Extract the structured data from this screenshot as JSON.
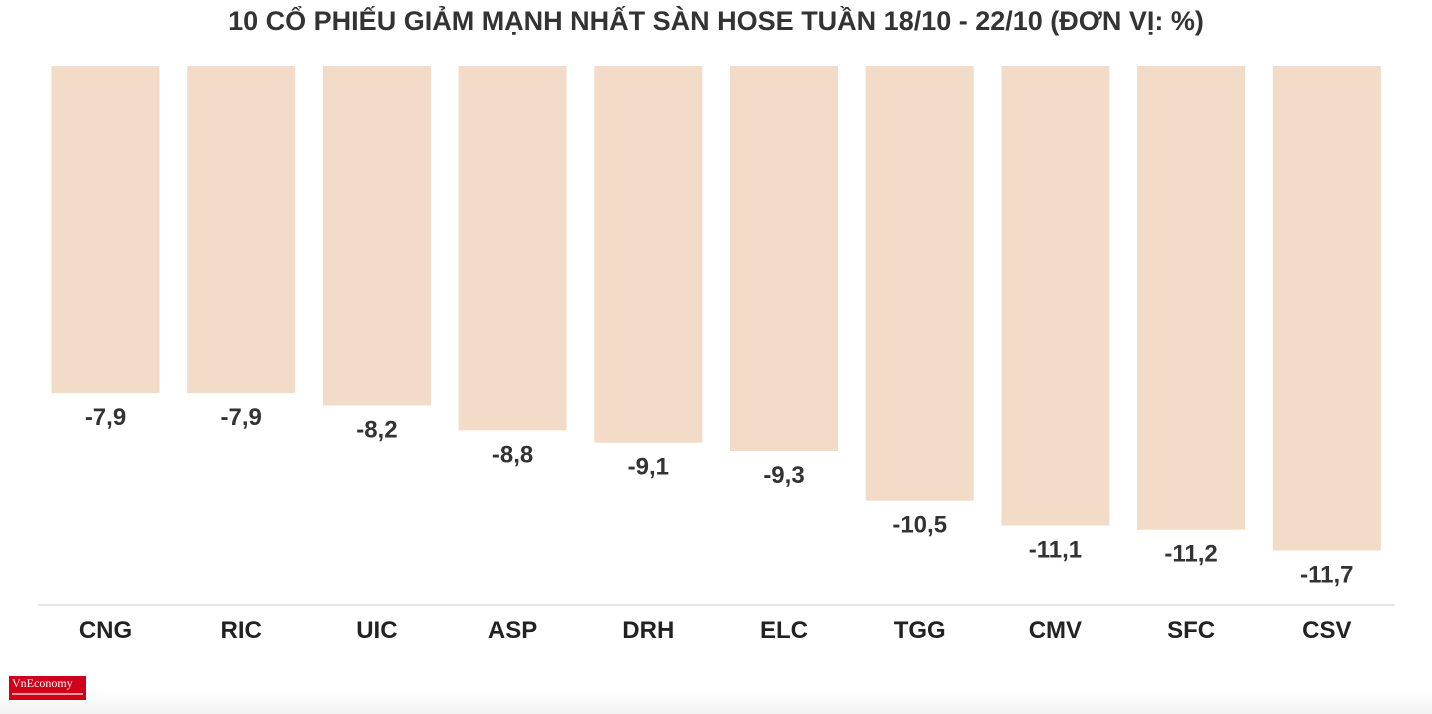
{
  "title": "10 CỔ PHIẾU GIẢM MẠNH NHẤT SÀN HOSE TUẦN 18/10 - 22/10 (ĐƠN VỊ: %)",
  "logo_text": "VnEconomy",
  "colors": {
    "bar": "#f2dbc7",
    "axis": "#dddddd",
    "text": "#333333",
    "logo_bg": "#d0021b"
  },
  "chart_data": {
    "type": "bar",
    "title": "10 CỔ PHIẾU GIẢM MẠNH NHẤT SÀN HOSE TUẦN 18/10 - 22/10 (ĐƠN VỊ: %)",
    "xlabel": "",
    "ylabel": "",
    "categories": [
      "CNG",
      "RIC",
      "UIC",
      "ASP",
      "DRH",
      "ELC",
      "TGG",
      "CMV",
      "SFC",
      "CSV"
    ],
    "values": [
      -7.9,
      -7.9,
      -8.2,
      -8.8,
      -9.1,
      -9.3,
      -10.5,
      -11.1,
      -11.2,
      -11.7
    ],
    "value_labels": [
      "-7,9",
      "-7,9",
      "-8,2",
      "-8,8",
      "-9,1",
      "-9,3",
      "-10,5",
      "-11,1",
      "-11,2",
      "-11,7"
    ],
    "ylim": [
      -13.0,
      0
    ],
    "grid": false,
    "legend": "none"
  }
}
